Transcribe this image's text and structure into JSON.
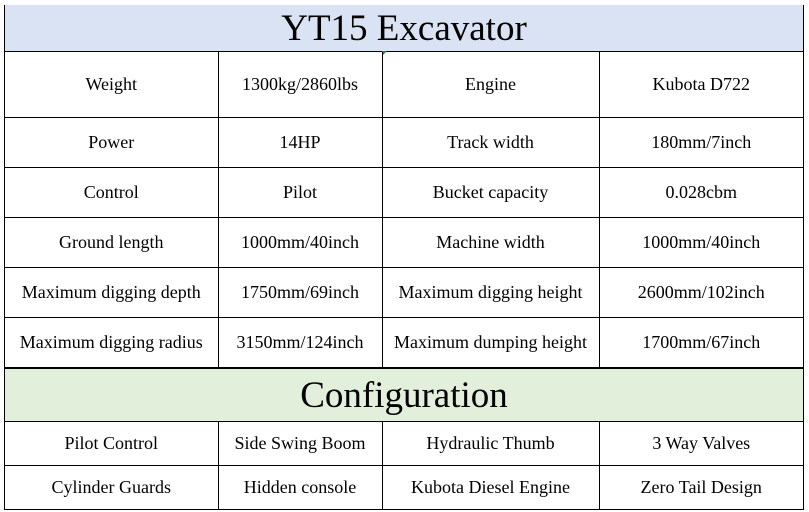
{
  "title": "YT15 Excavator",
  "specs": [
    [
      "Weight",
      "1300kg/2860lbs",
      "Engine",
      "Kubota D722"
    ],
    [
      "Power",
      "14HP",
      "Track width",
      "180mm/7inch"
    ],
    [
      "Control",
      "Pilot",
      "Bucket capacity",
      "0.028cbm"
    ],
    [
      "Ground length",
      "1000mm/40inch",
      "Machine width",
      "1000mm/40inch"
    ],
    [
      "Maximum digging depth",
      "1750mm/69inch",
      "Maximum digging height",
      "2600mm/102inch"
    ],
    [
      "Maximum digging radius",
      "3150mm/124inch",
      "Maximum dumping height",
      "1700mm/67inch"
    ]
  ],
  "configuration_title": "Configuration",
  "configuration": [
    [
      "Pilot Control",
      "Side Swing Boom",
      "Hydraulic Thumb",
      "3 Way Valves"
    ],
    [
      "Cylinder Guards",
      "Hidden console",
      "Kubota Diesel Engine",
      "Zero Tail Design"
    ]
  ]
}
